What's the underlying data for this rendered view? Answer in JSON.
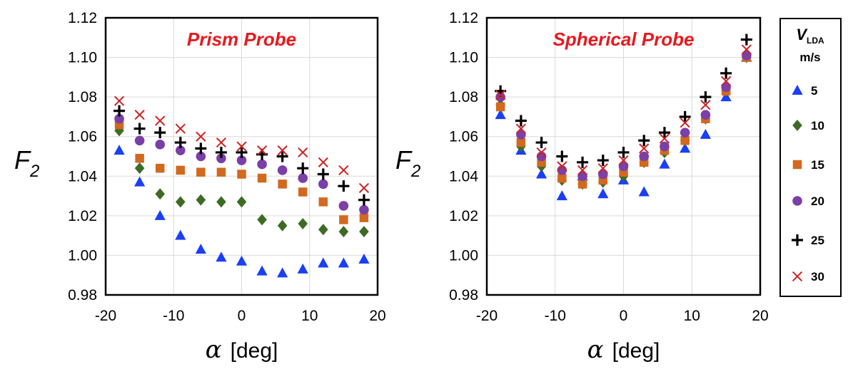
{
  "colors": {
    "5": "#1a3ff5",
    "10": "#3e6b24",
    "15": "#d2691e",
    "20": "#7b3fa8",
    "25": "#000000",
    "30": "#cc2222",
    "title": "#e8191e"
  },
  "legend": {
    "title_symbol": "V",
    "title_subscript": "LDA",
    "title_unit": "m/s",
    "items": [
      {
        "label": "5",
        "marker": "triangle-up"
      },
      {
        "label": "10",
        "marker": "diamond"
      },
      {
        "label": "15",
        "marker": "square"
      },
      {
        "label": "20",
        "marker": "circle"
      },
      {
        "label": "25",
        "marker": "plus"
      },
      {
        "label": "30",
        "marker": "x"
      }
    ]
  },
  "chart_data": [
    {
      "type": "scatter",
      "title": "Prism Probe",
      "xlabel_symbol": "α",
      "xlabel_unit": "[deg]",
      "ylabel_main": "F",
      "ylabel_sub": "2",
      "xlim": [
        -20,
        20
      ],
      "ylim": [
        0.98,
        1.12
      ],
      "xticks": [
        "-20",
        "-10",
        "0",
        "10",
        "20"
      ],
      "yticks": [
        "0.98",
        "1.00",
        "1.02",
        "1.04",
        "1.06",
        "1.08",
        "1.10",
        "1.12"
      ],
      "grid": true,
      "x": [
        -18,
        -15,
        -12,
        -9,
        -6,
        -3,
        0,
        3,
        6,
        9,
        12,
        15,
        18
      ],
      "series": [
        {
          "name": "5",
          "values": [
            1.053,
            1.037,
            1.02,
            1.01,
            1.003,
            0.999,
            0.997,
            0.992,
            0.991,
            0.993,
            0.996,
            0.996,
            0.998
          ]
        },
        {
          "name": "10",
          "values": [
            1.063,
            1.044,
            1.031,
            1.027,
            1.028,
            1.027,
            1.027,
            1.018,
            1.015,
            1.016,
            1.013,
            1.012,
            1.012
          ]
        },
        {
          "name": "15",
          "values": [
            1.066,
            1.049,
            1.044,
            1.043,
            1.042,
            1.042,
            1.041,
            1.039,
            1.036,
            1.032,
            1.027,
            1.018,
            1.019
          ]
        },
        {
          "name": "20",
          "values": [
            1.069,
            1.058,
            1.056,
            1.053,
            1.05,
            1.049,
            1.048,
            1.046,
            1.043,
            1.039,
            1.036,
            1.025,
            1.023
          ]
        },
        {
          "name": "25",
          "values": [
            1.073,
            1.064,
            1.062,
            1.057,
            1.054,
            1.052,
            1.052,
            1.051,
            1.05,
            1.044,
            1.041,
            1.035,
            1.028
          ]
        },
        {
          "name": "30",
          "values": [
            1.078,
            1.071,
            1.068,
            1.064,
            1.06,
            1.057,
            1.055,
            1.053,
            1.053,
            1.052,
            1.047,
            1.043,
            1.034
          ]
        }
      ]
    },
    {
      "type": "scatter",
      "title": "Spherical Probe",
      "xlabel_symbol": "α",
      "xlabel_unit": "[deg]",
      "ylabel_main": "F",
      "ylabel_sub": "2",
      "xlim": [
        -20,
        20
      ],
      "ylim": [
        0.98,
        1.12
      ],
      "xticks": [
        "-20",
        "-10",
        "0",
        "10",
        "20"
      ],
      "yticks": [
        "0.98",
        "1.00",
        "1.02",
        "1.04",
        "1.06",
        "1.08",
        "1.10",
        "1.12"
      ],
      "grid": true,
      "x": [
        -18,
        -15,
        -12,
        -9,
        -6,
        -3,
        0,
        3,
        6,
        9,
        12,
        15,
        18
      ],
      "series": [
        {
          "name": "5",
          "values": [
            1.071,
            1.053,
            1.041,
            1.03,
            1.04,
            1.031,
            1.038,
            1.032,
            1.046,
            1.054,
            1.061,
            1.08,
            1.1
          ]
        },
        {
          "name": "10",
          "values": [
            1.076,
            1.055,
            1.045,
            1.038,
            1.036,
            1.037,
            1.04,
            1.047,
            1.052,
            1.058,
            1.069,
            1.083,
            1.1
          ]
        },
        {
          "name": "15",
          "values": [
            1.075,
            1.057,
            1.047,
            1.039,
            1.036,
            1.038,
            1.042,
            1.047,
            1.053,
            1.058,
            1.069,
            1.083,
            1.1
          ]
        },
        {
          "name": "20",
          "values": [
            1.08,
            1.061,
            1.05,
            1.043,
            1.04,
            1.041,
            1.045,
            1.05,
            1.055,
            1.062,
            1.071,
            1.085,
            1.101
          ]
        },
        {
          "name": "25",
          "values": [
            1.083,
            1.068,
            1.057,
            1.05,
            1.047,
            1.048,
            1.052,
            1.058,
            1.062,
            1.07,
            1.08,
            1.092,
            1.109
          ]
        },
        {
          "name": "30",
          "values": [
            1.081,
            1.064,
            1.052,
            1.045,
            1.043,
            1.044,
            1.048,
            1.054,
            1.059,
            1.067,
            1.076,
            1.088,
            1.104
          ]
        }
      ]
    }
  ]
}
